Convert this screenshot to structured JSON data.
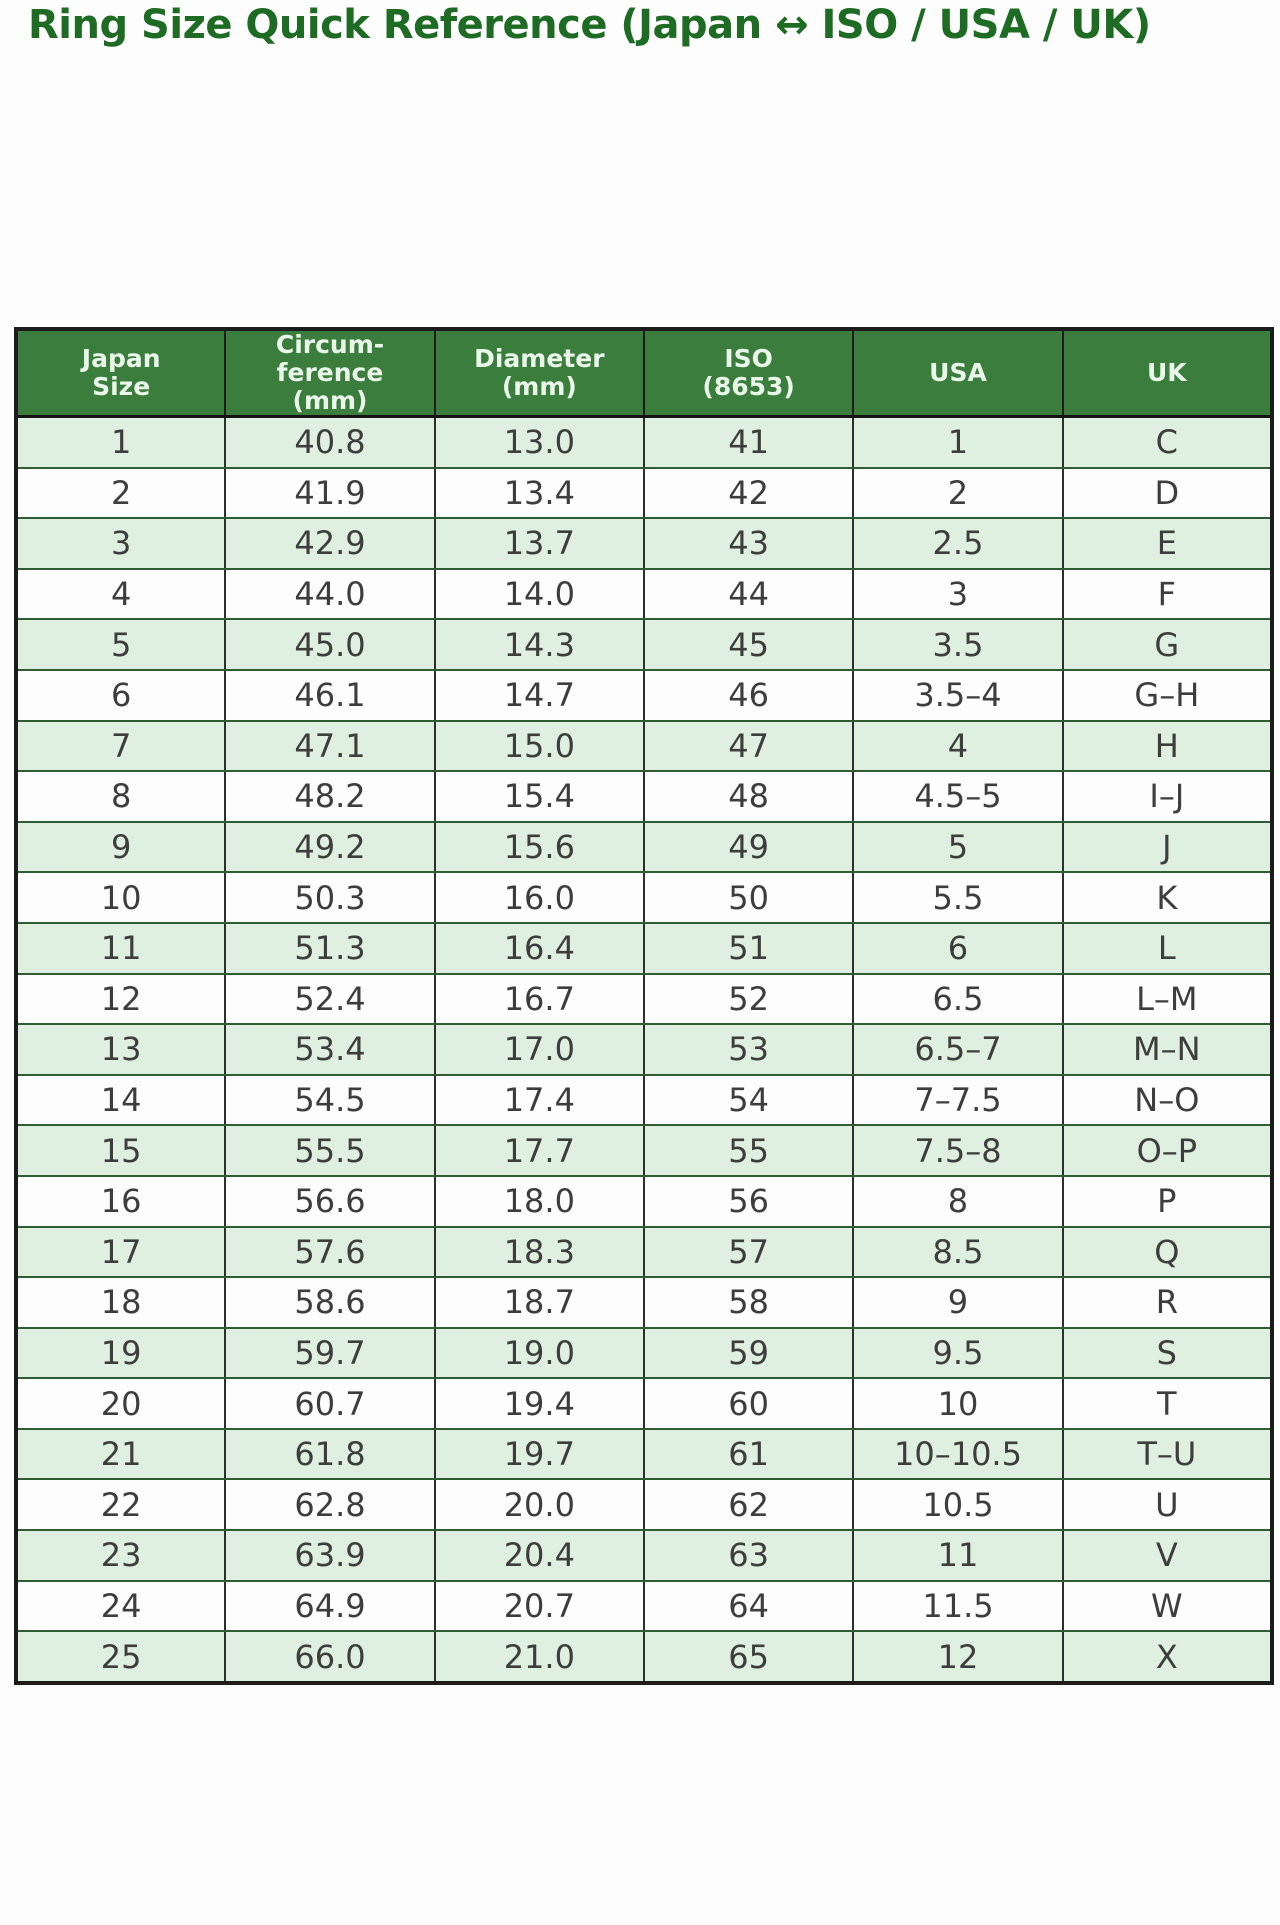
{
  "page": {
    "title": "Ring Size Quick Reference (Japan ↔ ISO / USA / UK)"
  },
  "colors": {
    "title_green": "#1e6b24",
    "header_bg": "#3b7d3c",
    "header_text": "#e9f6e9",
    "row_alt_bg": "#dff0e0",
    "row_bg": "#fdfdfd",
    "cell_text": "#3d3d3d",
    "outer_border": "#1c1c1c",
    "row_divider_green": "#2f5c33"
  },
  "chart_data": {
    "type": "table",
    "title": "Ring Size Quick Reference (Japan ↔ ISO / USA / UK)",
    "legend_position": "none",
    "grid": "full cell borders",
    "row_striping": "odd data rows light green, even data rows white",
    "columns": [
      {
        "id": "japan-size",
        "label": "Japan\nSize"
      },
      {
        "id": "circumference-mm",
        "label": "Circum-\nference\n(mm)"
      },
      {
        "id": "diameter-mm",
        "label": "Diameter\n(mm)"
      },
      {
        "id": "iso-8653",
        "label": "ISO\n(8653)"
      },
      {
        "id": "usa",
        "label": "USA"
      },
      {
        "id": "uk",
        "label": "UK"
      }
    ],
    "rows": [
      [
        "1",
        "40.8",
        "13.0",
        "41",
        "1",
        "C"
      ],
      [
        "2",
        "41.9",
        "13.4",
        "42",
        "2",
        "D"
      ],
      [
        "3",
        "42.9",
        "13.7",
        "43",
        "2.5",
        "E"
      ],
      [
        "4",
        "44.0",
        "14.0",
        "44",
        "3",
        "F"
      ],
      [
        "5",
        "45.0",
        "14.3",
        "45",
        "3.5",
        "G"
      ],
      [
        "6",
        "46.1",
        "14.7",
        "46",
        "3.5–4",
        "G–H"
      ],
      [
        "7",
        "47.1",
        "15.0",
        "47",
        "4",
        "H"
      ],
      [
        "8",
        "48.2",
        "15.4",
        "48",
        "4.5–5",
        "I–J"
      ],
      [
        "9",
        "49.2",
        "15.6",
        "49",
        "5",
        "J"
      ],
      [
        "10",
        "50.3",
        "16.0",
        "50",
        "5.5",
        "K"
      ],
      [
        "11",
        "51.3",
        "16.4",
        "51",
        "6",
        "L"
      ],
      [
        "12",
        "52.4",
        "16.7",
        "52",
        "6.5",
        "L–M"
      ],
      [
        "13",
        "53.4",
        "17.0",
        "53",
        "6.5–7",
        "M–N"
      ],
      [
        "14",
        "54.5",
        "17.4",
        "54",
        "7–7.5",
        "N–O"
      ],
      [
        "15",
        "55.5",
        "17.7",
        "55",
        "7.5–8",
        "O–P"
      ],
      [
        "16",
        "56.6",
        "18.0",
        "56",
        "8",
        "P"
      ],
      [
        "17",
        "57.6",
        "18.3",
        "57",
        "8.5",
        "Q"
      ],
      [
        "18",
        "58.6",
        "18.7",
        "58",
        "9",
        "R"
      ],
      [
        "19",
        "59.7",
        "19.0",
        "59",
        "9.5",
        "S"
      ],
      [
        "20",
        "60.7",
        "19.4",
        "60",
        "10",
        "T"
      ],
      [
        "21",
        "61.8",
        "19.7",
        "61",
        "10–10.5",
        "T–U"
      ],
      [
        "22",
        "62.8",
        "20.0",
        "62",
        "10.5",
        "U"
      ],
      [
        "23",
        "63.9",
        "20.4",
        "63",
        "11",
        "V"
      ],
      [
        "24",
        "64.9",
        "20.7",
        "64",
        "11.5",
        "W"
      ],
      [
        "25",
        "66.0",
        "21.0",
        "65",
        "12",
        "X"
      ]
    ]
  }
}
